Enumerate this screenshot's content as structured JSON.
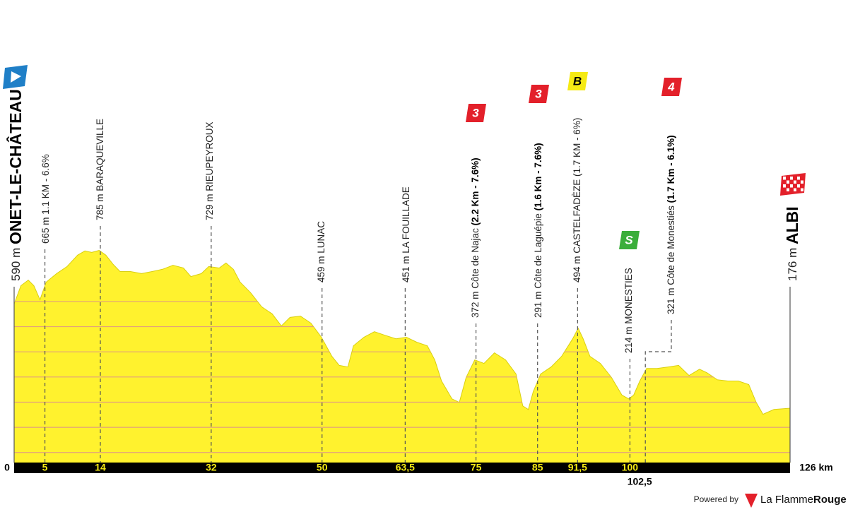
{
  "chart_data": {
    "type": "area",
    "color": "#fff22e",
    "grid_color": "#e2a07c",
    "xlim": [
      0,
      126
    ],
    "ylim": [
      -40,
      900
    ],
    "ygrid": [
      0,
      100,
      200,
      300,
      400,
      500,
      600
    ],
    "x": [
      0,
      1.1,
      2.3,
      3.2,
      4.2,
      5.2,
      6.9,
      8.6,
      10.3,
      11.5,
      12.6,
      13.8,
      14.9,
      16.1,
      17.2,
      18.9,
      20.7,
      22.4,
      24.1,
      25.8,
      27.5,
      28.7,
      30.4,
      31.6,
      33.3,
      34.4,
      35.6,
      36.7,
      38.4,
      40.2,
      41.9,
      43.4,
      44.8,
      46.5,
      48.2,
      49.9,
      51.6,
      52.8,
      54.2,
      55.1,
      56.8,
      58.5,
      60.2,
      62.0,
      63.7,
      65.4,
      67.1,
      68.3,
      69.4,
      71.1,
      72.3,
      73.4,
      74.8,
      76.3,
      78.0,
      79.8,
      81.5,
      82.6,
      83.5,
      84.3,
      85.5,
      87.2,
      88.9,
      90.7,
      91.6,
      92.4,
      93.5,
      95.2,
      97.0,
      98.7,
      99.8,
      100.6,
      101.6,
      102.7,
      104.4,
      106.2,
      107.9,
      109.6,
      111.3,
      112.5,
      114.2,
      115.9,
      117.6,
      119.3,
      120.5,
      121.6,
      123.4,
      126
    ],
    "values": [
      590,
      663,
      685,
      663,
      607,
      677,
      711,
      739,
      784,
      801,
      795,
      803,
      784,
      747,
      719,
      719,
      711,
      719,
      728,
      744,
      733,
      699,
      711,
      739,
      733,
      753,
      728,
      677,
      635,
      579,
      551,
      503,
      537,
      542,
      514,
      458,
      382,
      346,
      340,
      424,
      458,
      480,
      466,
      452,
      458,
      438,
      424,
      368,
      284,
      213,
      199,
      298,
      368,
      354,
      396,
      368,
      312,
      185,
      171,
      242,
      312,
      340,
      382,
      452,
      494,
      452,
      382,
      354,
      298,
      228,
      213,
      228,
      284,
      334,
      334,
      340,
      346,
      306,
      331,
      317,
      289,
      284,
      284,
      270,
      199,
      152,
      171,
      176
    ],
    "xticks": [
      0,
      5,
      14,
      32,
      50,
      {
        "value": 63.5,
        "label": "63,5"
      },
      75,
      85,
      {
        "value": 91.5,
        "label": "91,5"
      },
      100,
      {
        "value": 102.5,
        "label": "102,5"
      },
      {
        "value": 126,
        "label": "126 km"
      }
    ],
    "waypoints": [
      {
        "text": "590 m",
        "name": "ONET-LE-CHÂTEAU"
      },
      {
        "text": "665 m 1.1 KM - 6.6%"
      },
      {
        "text": "785 m BARAQUEVILLE"
      },
      {
        "text": "729 m RIEUPEYROUX"
      },
      {
        "text": "459 m LUNAC"
      },
      {
        "text": "451 m LA FOUILLADE"
      },
      {
        "text": "372 m Côte de Najac",
        "detail": "(2.2 Km - 7.6%)",
        "badge": "3",
        "badge_color": "#e3202a"
      },
      {
        "text": "291 m Côte de Laguépie",
        "detail": "(1.6 Km - 7.6%)",
        "badge": "3",
        "badge_color": "#e3202a"
      },
      {
        "text": "494 m CASTELFADÈZE (1.7 KM - 6%)",
        "badge": "B",
        "badge_color": "#f5ea14"
      },
      {
        "text": "214 m MONESTIES",
        "badge": "S",
        "badge_color": "#3aae3a"
      },
      {
        "text": "321 m Côte de Monestiés",
        "detail": "(1.7 Km - 6.1%)",
        "badge": "4",
        "badge_color": "#e3202a"
      },
      {
        "text": "176 m",
        "name": "ALBI"
      }
    ]
  },
  "footer": {
    "powered": "Powered by",
    "brand": "La Flamme",
    "brand_bold": "Rouge"
  }
}
